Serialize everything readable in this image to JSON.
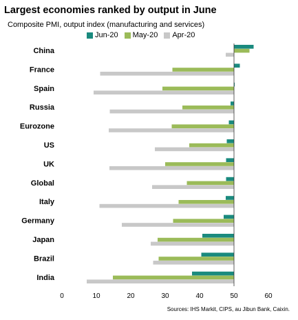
{
  "chart_data": {
    "type": "bar",
    "orientation": "horizontal",
    "title": "Largest economies ranked by output in June",
    "subtitle": "Composite PMI, output index (manufacturing and services)",
    "categories": [
      "China",
      "France",
      "Spain",
      "Russia",
      "Eurozone",
      "US",
      "UK",
      "Global",
      "Italy",
      "Germany",
      "Japan",
      "Brazil",
      "India"
    ],
    "series": [
      {
        "name": "Jun-20",
        "color": "#1a8a7e",
        "values": [
          55.7,
          51.7,
          50.2,
          49.0,
          48.5,
          47.9,
          47.7,
          47.7,
          47.6,
          47.0,
          40.8,
          40.5,
          37.8
        ]
      },
      {
        "name": "May-20",
        "color": "#9bbb59",
        "values": [
          54.5,
          32.1,
          29.2,
          35.0,
          31.9,
          37.0,
          30.0,
          36.3,
          33.9,
          32.3,
          27.8,
          28.1,
          14.8
        ]
      },
      {
        "name": "Apr-20",
        "color": "#c8c8c8",
        "values": [
          47.6,
          11.1,
          9.2,
          13.9,
          13.6,
          27.0,
          13.8,
          26.2,
          10.9,
          17.4,
          25.8,
          26.5,
          7.2
        ]
      }
    ],
    "xlim": [
      0,
      60
    ],
    "xticks": [
      "0",
      "10",
      "20",
      "30",
      "40",
      "50",
      "60"
    ],
    "reference_line": 50,
    "legend_position": "top",
    "grid": false
  },
  "sources": "Sources: IHS Markit, CIPS, au Jibun Bank, Caixin."
}
